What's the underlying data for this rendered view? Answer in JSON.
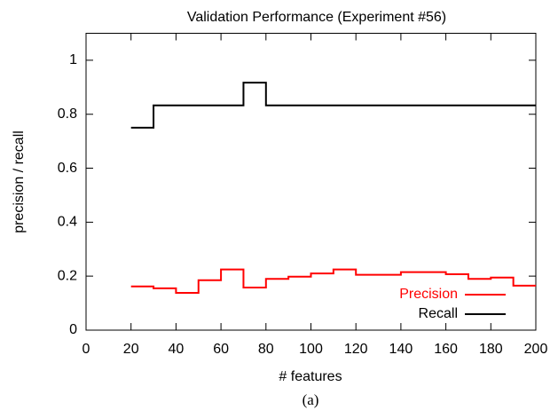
{
  "chart_data": {
    "type": "line",
    "style": "steps",
    "title": "Validation Performance (Experiment #56)",
    "x_label": "# features",
    "y_label": "precision / recall",
    "caption": "(a)",
    "x": [
      20,
      30,
      40,
      50,
      60,
      70,
      80,
      90,
      100,
      110,
      120,
      130,
      140,
      150,
      160,
      170,
      180,
      190,
      200
    ],
    "series": [
      {
        "name": "Precision",
        "color": "#ff0000",
        "values": [
          0.162,
          0.155,
          0.138,
          0.185,
          0.225,
          0.158,
          0.19,
          0.198,
          0.21,
          0.225,
          0.205,
          0.205,
          0.215,
          0.215,
          0.207,
          0.19,
          0.195,
          0.165,
          0.165
        ]
      },
      {
        "name": "Recall",
        "color": "#000000",
        "values": [
          0.75,
          0.833,
          0.833,
          0.833,
          0.833,
          0.917,
          0.833,
          0.833,
          0.833,
          0.833,
          0.833,
          0.833,
          0.833,
          0.833,
          0.833,
          0.833,
          0.833,
          0.833,
          0.833
        ]
      }
    ],
    "xlim": [
      0,
      200
    ],
    "xticks": [
      0,
      20,
      40,
      60,
      80,
      100,
      120,
      140,
      160,
      180,
      200
    ],
    "ylim": [
      0,
      1.1
    ],
    "yticks": [
      0,
      0.2,
      0.4,
      0.6,
      0.8,
      1
    ],
    "legend": "bottom right"
  }
}
